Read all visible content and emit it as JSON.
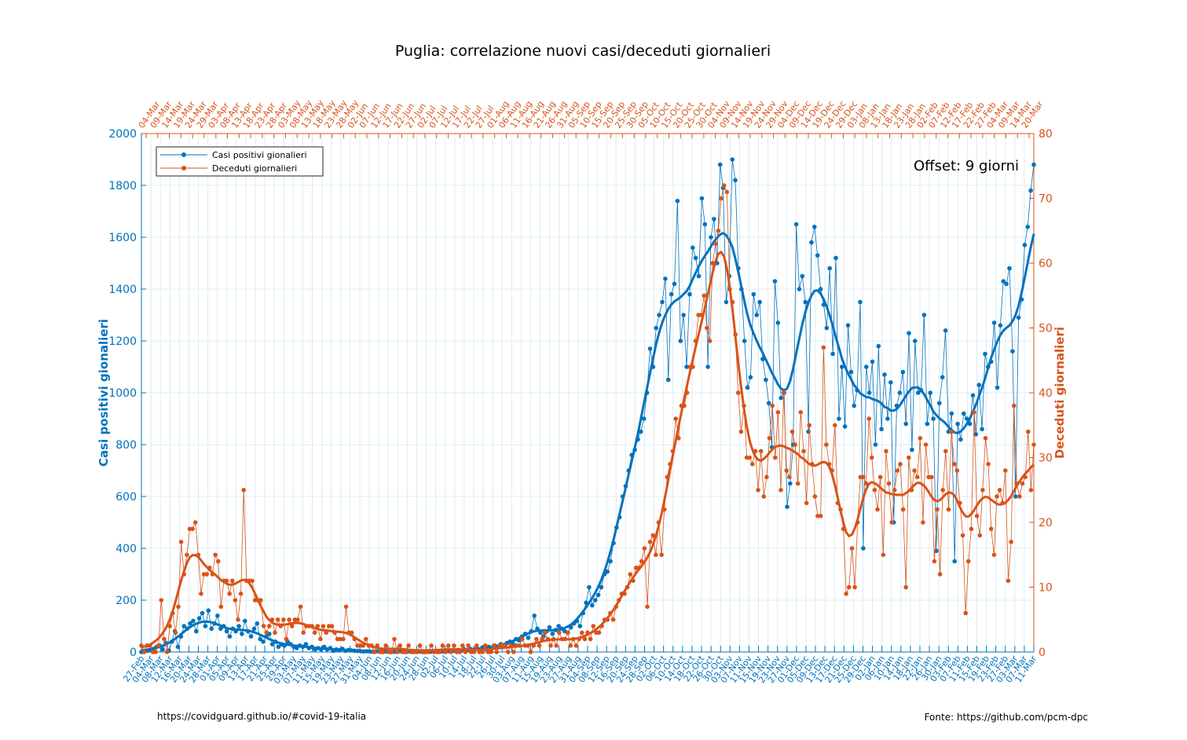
{
  "chart_data": {
    "type": "line",
    "title": "Puglia: correlazione nuovi casi/deceduti giornalieri",
    "annotation": "Offset: 9 giorni",
    "ylabel_left": "Casi positivi gionalieri",
    "ylabel_right": "Deceduti giornalieri",
    "ylim_left": [
      0,
      2000
    ],
    "ylim_right": [
      0,
      80
    ],
    "yticks_left": [
      0,
      200,
      400,
      600,
      800,
      1000,
      1200,
      1400,
      1600,
      1800,
      2000
    ],
    "yticks_right": [
      0,
      10,
      20,
      30,
      40,
      50,
      60,
      70,
      80
    ],
    "xticks_bottom": [
      "27-Feb",
      "04-Mar",
      "08-Mar",
      "12-Mar",
      "16-Mar",
      "20-Mar",
      "24-Mar",
      "28-Mar",
      "01-Apr",
      "05-Apr",
      "09-Apr",
      "13-Apr",
      "17-Apr",
      "21-Apr",
      "25-Apr",
      "29-Apr",
      "03-May",
      "07-May",
      "11-May",
      "15-May",
      "19-May",
      "23-May",
      "27-May",
      "31-May",
      "04-Jun",
      "08-Jun",
      "12-Jun",
      "16-Jun",
      "20-Jun",
      "24-Jun",
      "28-Jun",
      "02-Jul",
      "06-Jul",
      "10-Jul",
      "14-Jul",
      "18-Jul",
      "22-Jul",
      "26-Jul",
      "30-Jul",
      "03-Aug",
      "07-Aug",
      "11-Aug",
      "15-Aug",
      "19-Aug",
      "23-Aug",
      "27-Aug",
      "31-Aug",
      "04-Sep",
      "08-Sep",
      "12-Sep",
      "16-Sep",
      "20-Sep",
      "24-Sep",
      "28-Sep",
      "02-Oct",
      "06-Oct",
      "10-Oct",
      "14-Oct",
      "18-Oct",
      "22-Oct",
      "26-Oct",
      "30-Oct",
      "03-Nov",
      "07-Nov",
      "11-Nov",
      "15-Nov",
      "19-Nov",
      "23-Nov",
      "27-Nov",
      "01-Dec",
      "05-Dec",
      "09-Dec",
      "13-Dec",
      "17-Dec",
      "21-Dec",
      "25-Dec",
      "29-Dec",
      "02-Jan",
      "06-Jan",
      "10-Jan",
      "14-Jan",
      "18-Jan",
      "22-Jan",
      "26-Jan",
      "30-Jan",
      "03-Feb",
      "07-Feb",
      "11-Feb",
      "15-Feb",
      "19-Feb",
      "23-Feb",
      "27-Feb",
      "03-Mar",
      "07-Mar",
      "11-Mar"
    ],
    "xticks_top": [
      "04-Mar",
      "09-Mar",
      "14-Mar",
      "19-Mar",
      "24-Mar",
      "29-Mar",
      "03-Apr",
      "08-Apr",
      "13-Apr",
      "18-Apr",
      "23-Apr",
      "28-Apr",
      "03-May",
      "08-May",
      "13-May",
      "18-May",
      "23-May",
      "28-May",
      "02-Jun",
      "07-Jun",
      "12-Jun",
      "17-Jun",
      "22-Jun",
      "27-Jun",
      "02-Jul",
      "07-Jul",
      "12-Jul",
      "17-Jul",
      "22-Jul",
      "27-Jul",
      "01-Aug",
      "06-Aug",
      "11-Aug",
      "16-Aug",
      "21-Aug",
      "26-Aug",
      "31-Aug",
      "05-Sep",
      "10-Sep",
      "15-Sep",
      "20-Sep",
      "25-Sep",
      "30-Sep",
      "05-Oct",
      "10-Oct",
      "15-Oct",
      "20-Oct",
      "25-Oct",
      "30-Oct",
      "04-Nov",
      "09-Nov",
      "14-Nov",
      "19-Nov",
      "24-Nov",
      "29-Nov",
      "04-Dec",
      "09-Dec",
      "14-Dec",
      "19-Dec",
      "24-Dec",
      "29-Dec",
      "03-Jan",
      "08-Jan",
      "13-Jan",
      "18-Jan",
      "23-Jan",
      "28-Jan",
      "02-Feb",
      "07-Feb",
      "12-Feb",
      "17-Feb",
      "22-Feb",
      "27-Feb",
      "04-Mar",
      "09-Mar",
      "14-Mar",
      "20-Mar"
    ],
    "grid": true,
    "legend_position": "top-left",
    "series": [
      {
        "name": "Casi positivi gionalieri",
        "color": "#0072BD",
        "axis": "left",
        "x_index_start": 0,
        "values": [
          0,
          3,
          5,
          8,
          12,
          20,
          25,
          10,
          35,
          5,
          40,
          80,
          20,
          60,
          100,
          90,
          110,
          120,
          80,
          130,
          150,
          100,
          160,
          90,
          110,
          140,
          90,
          100,
          80,
          60,
          90,
          80,
          100,
          70,
          120,
          80,
          60,
          90,
          110,
          50,
          40,
          60,
          70,
          30,
          40,
          20,
          30,
          25,
          40,
          30,
          20,
          15,
          25,
          20,
          30,
          15,
          20,
          10,
          15,
          10,
          20,
          10,
          15,
          5,
          10,
          8,
          12,
          5,
          8,
          6,
          5,
          4,
          3,
          2,
          3,
          2,
          1,
          2,
          3,
          1,
          2,
          1,
          0,
          1,
          2,
          3,
          1,
          0,
          2,
          1,
          3,
          2,
          1,
          0,
          2,
          1,
          3,
          2,
          4,
          2,
          5,
          3,
          6,
          4,
          8,
          5,
          10,
          7,
          12,
          8,
          15,
          10,
          18,
          12,
          20,
          15,
          25,
          20,
          30,
          25,
          35,
          40,
          30,
          50,
          45,
          60,
          70,
          55,
          80,
          140,
          90,
          75,
          60,
          80,
          95,
          70,
          85,
          100,
          90,
          80,
          75,
          95,
          110,
          120,
          100,
          150,
          190,
          250,
          180,
          200,
          220,
          250,
          300,
          310,
          350,
          420,
          480,
          520,
          600,
          640,
          700,
          760,
          780,
          820,
          850,
          900,
          1000,
          1170,
          1100,
          1250,
          1300,
          1350,
          1440,
          1050,
          1380,
          1420,
          1740,
          1200,
          1300,
          1100,
          1380,
          1560,
          1520,
          1450,
          1750,
          1650,
          1100,
          1600,
          1670,
          1500,
          1880,
          1790,
          1350,
          1450,
          1900,
          1820,
          1480,
          1400,
          1200,
          1020,
          1060,
          1380,
          1300,
          1350,
          1130,
          1050,
          960,
          790,
          1430,
          1270,
          980,
          1000,
          560,
          650,
          800,
          1650,
          1400,
          1450,
          1350,
          850,
          1580,
          1640,
          1530,
          1400,
          1340,
          1250,
          1480,
          1150,
          1520,
          900,
          1100,
          870,
          1260,
          1080,
          950,
          1010,
          1350,
          400,
          1100,
          1000,
          1120,
          800,
          1180,
          860,
          1070,
          900,
          1040,
          500,
          950,
          1000,
          1080,
          880,
          1230,
          780,
          1200,
          1000,
          1010,
          1300,
          880,
          1000,
          900,
          390,
          960,
          1060,
          1240,
          850,
          920,
          350,
          880,
          820,
          920,
          900,
          880,
          990,
          840,
          1030,
          860,
          1150,
          1100,
          1120,
          1270,
          1020,
          1260,
          1430,
          1420,
          1480,
          1160,
          600,
          1290,
          1360,
          1570,
          1640,
          1780,
          1880
        ]
      },
      {
        "name": "Deceduti giornalieri",
        "color": "#D95319",
        "axis": "right",
        "x_index_start": 0,
        "values": [
          1,
          0,
          1,
          1,
          0,
          0,
          1,
          8,
          2,
          0,
          4,
          6,
          3,
          7,
          17,
          12,
          15,
          19,
          19,
          20,
          15,
          9,
          12,
          12,
          13,
          12,
          15,
          14,
          7,
          11,
          11,
          9,
          11,
          8,
          5,
          9,
          25,
          11,
          11,
          11,
          8,
          8,
          8,
          4,
          3,
          4,
          5,
          3,
          5,
          4,
          5,
          2,
          5,
          4,
          5,
          5,
          7,
          3,
          4,
          4,
          4,
          3,
          4,
          2,
          4,
          3,
          4,
          4,
          3,
          2,
          2,
          2,
          7,
          3,
          3,
          2,
          1,
          1,
          1,
          2,
          1,
          1,
          0,
          1,
          0,
          0,
          1,
          0,
          0,
          2,
          0,
          1,
          0,
          0,
          1,
          0,
          0,
          0,
          1,
          0,
          0,
          0,
          1,
          0,
          0,
          0,
          1,
          0,
          1,
          0,
          1,
          0,
          0,
          1,
          0,
          1,
          0,
          0,
          1,
          0,
          0,
          1,
          0,
          0,
          1,
          0,
          1,
          1,
          1,
          0,
          1,
          0,
          1,
          1,
          2,
          1,
          1,
          0,
          1,
          2,
          1,
          2,
          3,
          2,
          1,
          2,
          1,
          3,
          2,
          2,
          3,
          1,
          2,
          1,
          2,
          3,
          2,
          3,
          2,
          4,
          3,
          3,
          4,
          5,
          5,
          6,
          5,
          7,
          8,
          9,
          9,
          10,
          12,
          11,
          13,
          13,
          14,
          16,
          7,
          17,
          18,
          15,
          20,
          15,
          22,
          27,
          29,
          31,
          36,
          33,
          38,
          38,
          40,
          44,
          44,
          48,
          52,
          52,
          55,
          50,
          48,
          60,
          63,
          65,
          70,
          72,
          71,
          56,
          54,
          49,
          40,
          34,
          38,
          30,
          30,
          29,
          31,
          25,
          31,
          24,
          27,
          33,
          38,
          30,
          37,
          25,
          40,
          28,
          27,
          34,
          32,
          26,
          37,
          31,
          23,
          35,
          29,
          24,
          21,
          21,
          47,
          32,
          29,
          28,
          35,
          23,
          22,
          19,
          9,
          10,
          16,
          10,
          20,
          27,
          27,
          26,
          36,
          30,
          25,
          22,
          27,
          15,
          31,
          26,
          20,
          25,
          28,
          29,
          22,
          10,
          30,
          25,
          28,
          27,
          33,
          20,
          32,
          27,
          27,
          14,
          22,
          12,
          25,
          31,
          22,
          34,
          29,
          28,
          23,
          18,
          6,
          14,
          19,
          37,
          21,
          18,
          25,
          33,
          29,
          19,
          15,
          24,
          25,
          23,
          28,
          11,
          17,
          38,
          26,
          24,
          26,
          27,
          34,
          25,
          32
        ]
      }
    ],
    "source_left": "https://covidguard.github.io/#covid-19-italia",
    "source_right": "Fonte: https://github.com/pcm-dpc"
  }
}
